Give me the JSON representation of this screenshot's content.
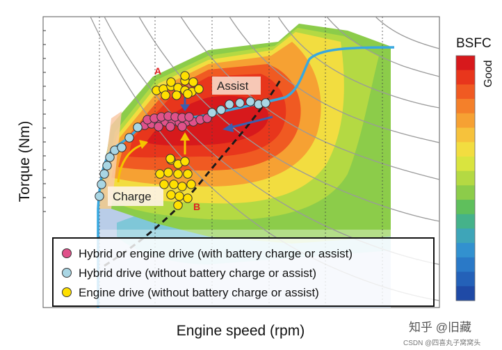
{
  "chart_data": {
    "type": "scatter",
    "title": "",
    "xlabel": "Engine speed (rpm)",
    "ylabel": "Torque (Nm)",
    "colorbar": {
      "title": "BSFC",
      "label": "Good",
      "colors": [
        "#d7191c",
        "#e8361c",
        "#f05a22",
        "#f4802a",
        "#f6a133",
        "#f6c23c",
        "#f2dd40",
        "#d9e43f",
        "#b4d943",
        "#8ccc4a",
        "#5fbf5c",
        "#45b28a",
        "#3ea5b8",
        "#3291cf",
        "#2a79c7",
        "#2461b8",
        "#1f4aa6"
      ]
    },
    "legend": {
      "placement": "bottom-left",
      "items": [
        {
          "marker_color": "#e0518a",
          "label": "Hybrid or engine drive (with battery charge or assist)"
        },
        {
          "marker_color": "#a9d6e4",
          "label": "Hybrid drive (without battery charge or assist)"
        },
        {
          "marker_color": "#ffe000",
          "label": "Engine drive (without battery charge or assist)"
        }
      ]
    },
    "annotations": {
      "assist": "Assist",
      "charge": "Charge",
      "point_a": "A",
      "point_b": "B"
    },
    "series": [
      {
        "name": "Hybrid or engine drive (with battery charge or assist)",
        "color": "#e0518a",
        "points": [
          [
            198,
            183
          ],
          [
            208,
            180
          ],
          [
            218,
            178
          ],
          [
            228,
            176
          ],
          [
            238,
            175
          ],
          [
            248,
            175
          ],
          [
            258,
            176
          ],
          [
            268,
            175
          ],
          [
            278,
            175
          ],
          [
            288,
            172
          ],
          [
            298,
            170
          ],
          [
            212,
            172
          ],
          [
            222,
            170
          ],
          [
            232,
            168
          ],
          [
            242,
            167
          ],
          [
            252,
            168
          ],
          [
            262,
            169
          ],
          [
            272,
            168
          ],
          [
            228,
            182
          ],
          [
            245,
            182
          ],
          [
            262,
            182
          ]
        ]
      },
      {
        "name": "Hybrid drive (without battery charge or assist)",
        "color": "#a9d6e4",
        "points": [
          [
            143,
            282
          ],
          [
            146,
            265
          ],
          [
            150,
            250
          ],
          [
            154,
            238
          ],
          [
            158,
            226
          ],
          [
            165,
            216
          ],
          [
            175,
            212
          ],
          [
            186,
            198
          ],
          [
            198,
            183
          ],
          [
            305,
            162
          ],
          [
            318,
            158
          ],
          [
            330,
            150
          ],
          [
            345,
            148
          ],
          [
            360,
            146
          ],
          [
            372,
            150
          ],
          [
            382,
            148
          ]
        ]
      },
      {
        "name": "Engine drive (without battery charge or assist)",
        "color": "#ffe000",
        "points": [
          [
            225,
            130
          ],
          [
            235,
            128
          ],
          [
            246,
            124
          ],
          [
            256,
            126
          ],
          [
            266,
            130
          ],
          [
            276,
            132
          ],
          [
            286,
            128
          ],
          [
            246,
            118
          ],
          [
            266,
            116
          ],
          [
            278,
            118
          ],
          [
            238,
            137
          ],
          [
            254,
            137
          ],
          [
            270,
            135
          ],
          [
            266,
            109
          ],
          [
            246,
            230
          ],
          [
            256,
            236
          ],
          [
            266,
            232
          ],
          [
            230,
            250
          ],
          [
            242,
            248
          ],
          [
            256,
            250
          ],
          [
            270,
            250
          ],
          [
            236,
            265
          ],
          [
            250,
            265
          ],
          [
            262,
            268
          ],
          [
            275,
            265
          ],
          [
            246,
            280
          ],
          [
            258,
            282
          ],
          [
            270,
            285
          ],
          [
            256,
            295
          ],
          [
            245,
            228
          ]
        ]
      }
    ]
  },
  "watermark": {
    "line1": "知乎 @旧藏",
    "line2": "CSDN @四喜丸子窝窝头"
  }
}
